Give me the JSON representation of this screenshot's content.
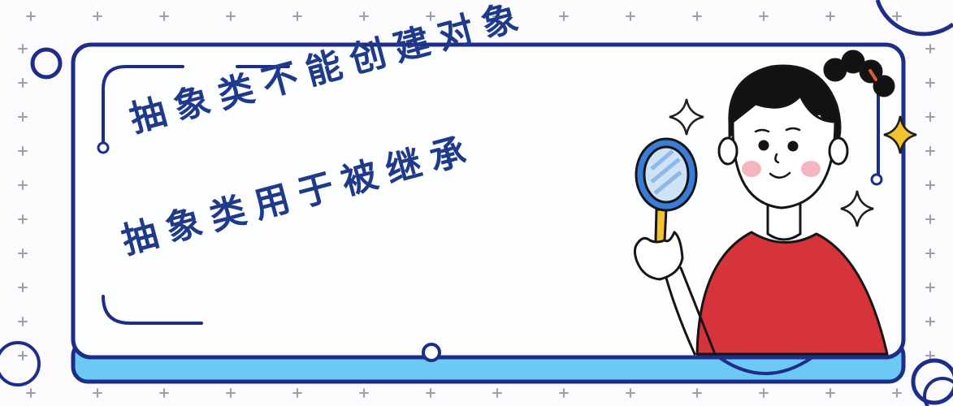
{
  "headline": {
    "line1": "抽象类不能创建对象",
    "line2": "抽象类用于被继承"
  },
  "colors": {
    "frame_stroke": "#1f2d8a",
    "frame_fill": "#fdfeff",
    "band_fill": "#6cc8f5",
    "text": "#1f3a8a",
    "shirt": "#d6333a",
    "sparkle_gold": "#f2c230",
    "plus_marks": "#9aa0aa"
  },
  "icons": [
    "magnifier-icon",
    "sparkle-icon",
    "girl-illustration"
  ]
}
